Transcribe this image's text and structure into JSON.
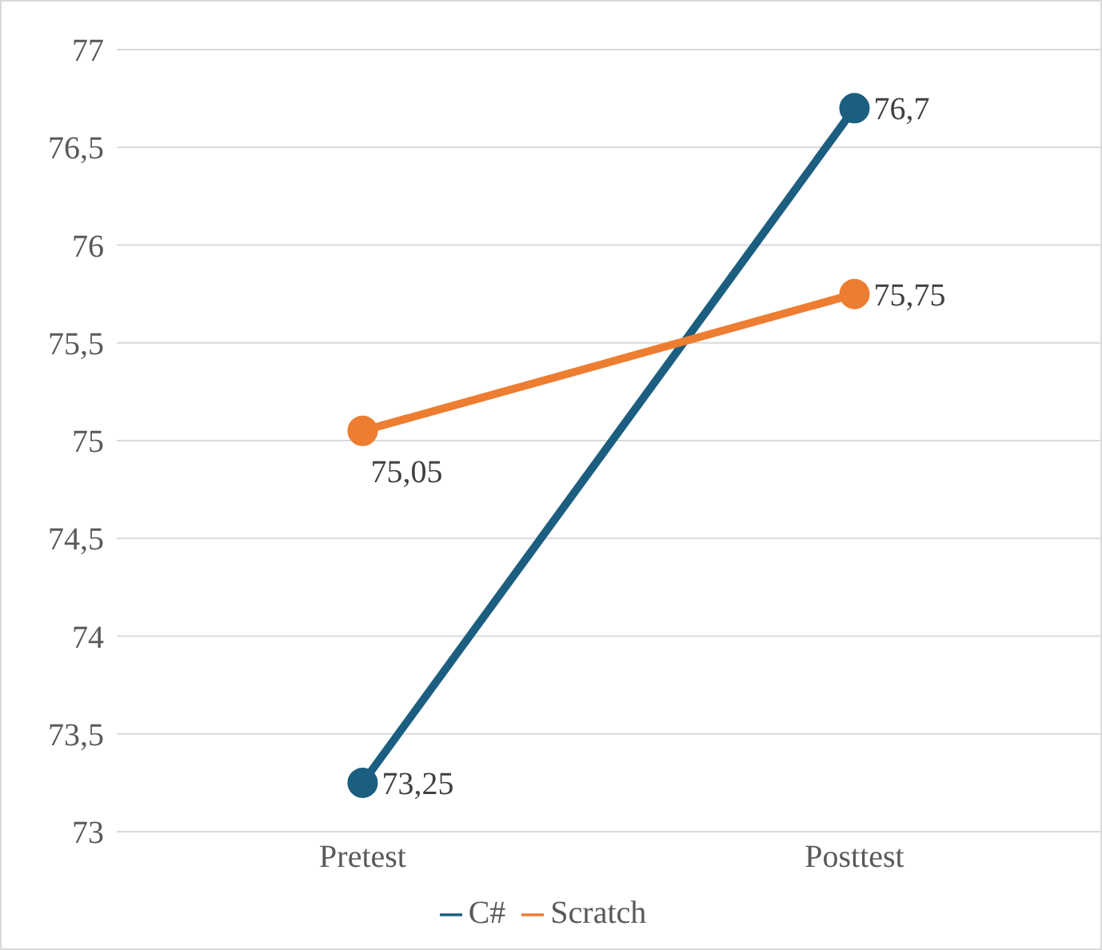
{
  "chart_data": {
    "type": "line",
    "categories": [
      "Pretest",
      "Posttest"
    ],
    "series": [
      {
        "name": "C#",
        "color": "#1b5e80",
        "values": [
          73.25,
          76.7
        ],
        "value_labels": [
          "73,25",
          "76,7"
        ]
      },
      {
        "name": "Scratch",
        "color": "#ed7d31",
        "values": [
          75.05,
          75.75
        ],
        "value_labels": [
          "75,05",
          "75,75"
        ]
      }
    ],
    "ylim": [
      73,
      77
    ],
    "yticks": [
      {
        "value": 73,
        "label": "73"
      },
      {
        "value": 73.5,
        "label": "73,5"
      },
      {
        "value": 74,
        "label": "74"
      },
      {
        "value": 74.5,
        "label": "74,5"
      },
      {
        "value": 75,
        "label": "75"
      },
      {
        "value": 75.5,
        "label": "75,5"
      },
      {
        "value": 76,
        "label": "76"
      },
      {
        "value": 76.5,
        "label": "76,5"
      },
      {
        "value": 77,
        "label": "77"
      }
    ],
    "grid": "y",
    "legend": "bottom",
    "marker": "circle",
    "line_style": "solid"
  }
}
